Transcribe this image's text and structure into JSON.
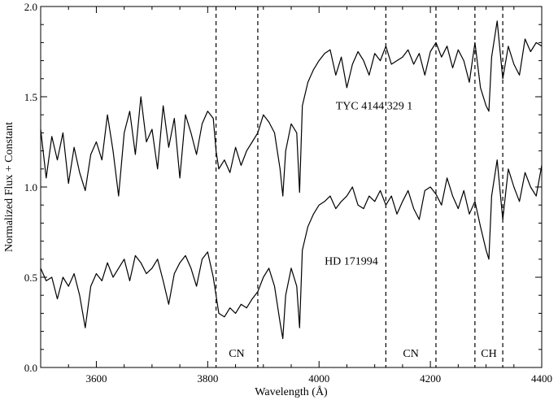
{
  "chart_data": {
    "type": "line",
    "title": "",
    "xlabel": "Wavelength (Å)",
    "ylabel": "Normalized Flux + Constant",
    "xlim": [
      3500,
      4400
    ],
    "ylim": [
      0.0,
      2.0
    ],
    "x_ticks": [
      3600,
      3800,
      4000,
      4200,
      4400
    ],
    "x_tick_labels": [
      "3600",
      "3800",
      "4000",
      "4200",
      "4400"
    ],
    "y_ticks": [
      0.0,
      0.5,
      1.0,
      1.5,
      2.0
    ],
    "y_tick_labels": [
      "0.0",
      "0.5",
      "1.0",
      "1.5",
      "2.0"
    ],
    "grid": false,
    "line_color": "#000000",
    "series": [
      {
        "name": "TYC 4144 329 1",
        "x": [
          3500,
          3510,
          3520,
          3530,
          3540,
          3550,
          3560,
          3570,
          3580,
          3590,
          3600,
          3610,
          3620,
          3630,
          3640,
          3650,
          3660,
          3670,
          3680,
          3690,
          3700,
          3710,
          3720,
          3730,
          3740,
          3750,
          3760,
          3770,
          3780,
          3790,
          3800,
          3810,
          3815,
          3820,
          3830,
          3840,
          3850,
          3860,
          3870,
          3880,
          3890,
          3900,
          3910,
          3920,
          3930,
          3935,
          3940,
          3950,
          3960,
          3965,
          3970,
          3980,
          3990,
          4000,
          4010,
          4020,
          4030,
          4040,
          4050,
          4060,
          4070,
          4080,
          4090,
          4100,
          4110,
          4120,
          4130,
          4140,
          4150,
          4160,
          4170,
          4180,
          4190,
          4200,
          4210,
          4220,
          4230,
          4240,
          4250,
          4260,
          4270,
          4280,
          4290,
          4300,
          4305,
          4310,
          4320,
          4330,
          4340,
          4350,
          4360,
          4370,
          4380,
          4390,
          4400
        ],
        "y": [
          1.32,
          1.05,
          1.28,
          1.15,
          1.3,
          1.02,
          1.22,
          1.08,
          0.98,
          1.18,
          1.25,
          1.15,
          1.4,
          1.2,
          0.95,
          1.3,
          1.42,
          1.18,
          1.5,
          1.25,
          1.32,
          1.1,
          1.45,
          1.22,
          1.38,
          1.05,
          1.4,
          1.3,
          1.18,
          1.35,
          1.42,
          1.38,
          1.2,
          1.1,
          1.15,
          1.08,
          1.22,
          1.12,
          1.2,
          1.25,
          1.3,
          1.4,
          1.36,
          1.3,
          1.1,
          0.95,
          1.2,
          1.35,
          1.3,
          0.97,
          1.45,
          1.58,
          1.65,
          1.7,
          1.74,
          1.76,
          1.62,
          1.72,
          1.55,
          1.68,
          1.75,
          1.7,
          1.62,
          1.74,
          1.7,
          1.78,
          1.68,
          1.7,
          1.72,
          1.76,
          1.68,
          1.74,
          1.62,
          1.75,
          1.8,
          1.72,
          1.78,
          1.66,
          1.76,
          1.7,
          1.58,
          1.8,
          1.55,
          1.45,
          1.42,
          1.72,
          1.92,
          1.6,
          1.78,
          1.68,
          1.62,
          1.82,
          1.75,
          1.8,
          1.78
        ]
      },
      {
        "name": "HD 171994",
        "x": [
          3500,
          3510,
          3520,
          3530,
          3540,
          3550,
          3560,
          3570,
          3580,
          3590,
          3600,
          3610,
          3620,
          3630,
          3640,
          3650,
          3660,
          3670,
          3680,
          3690,
          3700,
          3710,
          3720,
          3730,
          3740,
          3750,
          3760,
          3770,
          3780,
          3790,
          3800,
          3810,
          3815,
          3820,
          3830,
          3840,
          3850,
          3860,
          3870,
          3880,
          3890,
          3900,
          3910,
          3920,
          3930,
          3935,
          3940,
          3950,
          3960,
          3965,
          3970,
          3980,
          3990,
          4000,
          4010,
          4020,
          4030,
          4040,
          4050,
          4060,
          4070,
          4080,
          4090,
          4100,
          4110,
          4120,
          4130,
          4140,
          4150,
          4160,
          4170,
          4180,
          4190,
          4200,
          4210,
          4220,
          4230,
          4240,
          4250,
          4260,
          4270,
          4280,
          4290,
          4300,
          4305,
          4310,
          4320,
          4330,
          4340,
          4350,
          4360,
          4370,
          4380,
          4390,
          4400
        ],
        "y": [
          0.55,
          0.48,
          0.5,
          0.38,
          0.5,
          0.45,
          0.52,
          0.4,
          0.22,
          0.45,
          0.52,
          0.48,
          0.58,
          0.5,
          0.55,
          0.6,
          0.48,
          0.62,
          0.58,
          0.52,
          0.55,
          0.6,
          0.48,
          0.35,
          0.52,
          0.58,
          0.62,
          0.55,
          0.45,
          0.6,
          0.64,
          0.5,
          0.4,
          0.3,
          0.28,
          0.33,
          0.3,
          0.35,
          0.33,
          0.38,
          0.42,
          0.5,
          0.55,
          0.45,
          0.25,
          0.16,
          0.4,
          0.55,
          0.45,
          0.22,
          0.65,
          0.78,
          0.85,
          0.9,
          0.92,
          0.95,
          0.88,
          0.92,
          0.95,
          1.0,
          0.9,
          0.88,
          0.95,
          0.92,
          0.98,
          0.9,
          0.95,
          0.85,
          0.92,
          0.98,
          0.88,
          0.82,
          0.98,
          1.0,
          0.96,
          0.9,
          1.05,
          0.95,
          0.88,
          0.98,
          0.85,
          0.92,
          0.78,
          0.65,
          0.6,
          0.95,
          1.15,
          0.82,
          1.1,
          1.0,
          0.92,
          1.08,
          1.0,
          0.95,
          1.12
        ]
      }
    ],
    "vertical_lines": [
      3815,
      3890,
      4120,
      4210,
      4280,
      4330
    ],
    "annotations": [
      {
        "text": "TYC 4144 329 1",
        "x": 4030,
        "y": 1.43
      },
      {
        "text": "HD 171994",
        "x": 4010,
        "y": 0.57
      }
    ],
    "band_labels": [
      {
        "text": "CN",
        "x": 3852,
        "y": 0.08
      },
      {
        "text": "CN",
        "x": 4165,
        "y": 0.08
      },
      {
        "text": "CH",
        "x": 4305,
        "y": 0.08
      }
    ]
  }
}
